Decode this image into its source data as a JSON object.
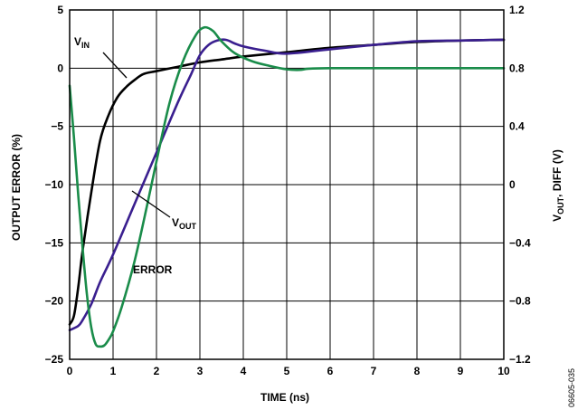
{
  "chart_data": {
    "type": "line",
    "xlabel": "TIME (ns)",
    "ylabel_left": "OUTPUT ERROR (%)",
    "ylabel_right_main": "V",
    "ylabel_right_sub": "OUT",
    "ylabel_right_rest": ", DIFF (V)",
    "xlim": [
      0,
      10
    ],
    "ylim_left": [
      -25,
      5
    ],
    "ylim_right": [
      -1.2,
      1.2
    ],
    "grid": true,
    "x_ticks": [
      "0",
      "1",
      "2",
      "3",
      "4",
      "5",
      "6",
      "7",
      "8",
      "9",
      "10"
    ],
    "y_left_ticks": [
      "5",
      "0",
      "−5",
      "−10",
      "−15",
      "−20",
      "−25"
    ],
    "y_right_ticks": [
      "1.2",
      "0.8",
      "0.4",
      "0",
      "−0.4",
      "−0.8",
      "−1.2"
    ],
    "figure_id": "06605-035",
    "series": [
      {
        "name": "VIN",
        "label_main": "V",
        "label_sub": "IN",
        "color": "#000000",
        "axis": "right",
        "x": [
          0,
          0.1,
          0.2,
          0.3,
          0.5,
          0.7,
          0.9,
          1.1,
          1.3,
          1.5,
          1.7,
          2.0,
          2.5,
          3.0,
          3.5,
          4.0,
          5.0,
          6.0,
          7.0,
          8.0,
          9.0,
          10.0
        ],
        "y": [
          -0.96,
          -0.9,
          -0.7,
          -0.45,
          -0.05,
          0.3,
          0.48,
          0.6,
          0.67,
          0.72,
          0.76,
          0.78,
          0.81,
          0.84,
          0.86,
          0.88,
          0.91,
          0.94,
          0.96,
          0.98,
          0.99,
          0.995
        ]
      },
      {
        "name": "VOUT",
        "label_main": "V",
        "label_sub": "OUT",
        "color": "#3a1f8f",
        "axis": "right",
        "x": [
          0,
          0.2,
          0.3,
          0.5,
          0.7,
          1.0,
          1.5,
          2.0,
          2.5,
          2.8,
          3.0,
          3.2,
          3.4,
          3.6,
          3.8,
          4.0,
          4.5,
          5.0,
          6.0,
          7.0,
          8.0,
          9.0,
          10.0
        ],
        "y": [
          -1.0,
          -0.97,
          -0.93,
          -0.82,
          -0.67,
          -0.48,
          -0.13,
          0.22,
          0.57,
          0.76,
          0.89,
          0.96,
          0.99,
          0.995,
          0.97,
          0.95,
          0.92,
          0.9,
          0.93,
          0.96,
          0.985,
          0.99,
          0.995
        ]
      },
      {
        "name": "ERROR",
        "label_main": "ERROR",
        "color": "#1a8c4a",
        "axis": "left",
        "x": [
          0,
          0.1,
          0.2,
          0.3,
          0.4,
          0.5,
          0.6,
          0.7,
          0.8,
          0.9,
          1.0,
          1.2,
          1.5,
          1.8,
          2.0,
          2.3,
          2.6,
          2.9,
          3.1,
          3.3,
          3.5,
          3.8,
          4.2,
          4.6,
          5.0,
          5.3,
          5.5,
          6.0,
          7.0,
          8.0,
          9.0,
          10.0
        ],
        "y": [
          -1.5,
          -6,
          -11,
          -15.5,
          -19.5,
          -22.3,
          -23.7,
          -23.9,
          -23.8,
          -23.3,
          -22.6,
          -20.5,
          -16.5,
          -11.5,
          -8,
          -3,
          0.5,
          2.8,
          3.5,
          3.2,
          2.3,
          1.3,
          0.6,
          0.2,
          -0.1,
          -0.15,
          -0.05,
          0,
          0,
          0,
          0,
          0
        ]
      }
    ]
  }
}
